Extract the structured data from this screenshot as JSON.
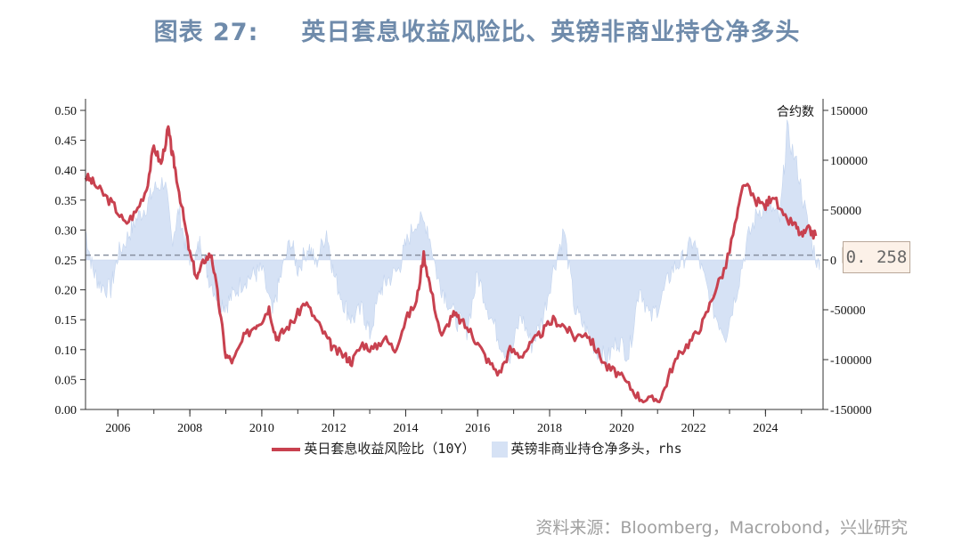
{
  "title": {
    "label": "图表 27:",
    "text": "英日套息收益风险比、英镑非商业持仓净多头"
  },
  "source": "资料来源：Bloomberg，Macrobond，兴业研究",
  "colors": {
    "line": "#c8414f",
    "area": "#d6e2f5",
    "area_stroke": "#c3d4ee",
    "dashed": "#8890a0"
  },
  "chart_data": {
    "type": "line",
    "y_left": {
      "min": 0,
      "max": 0.5,
      "ticks": [
        "0.00",
        "0.05",
        "0.10",
        "0.15",
        "0.20",
        "0.25",
        "0.30",
        "0.35",
        "0.40",
        "0.45",
        "0.50"
      ]
    },
    "y_right": {
      "min": -150000,
      "max": 150000,
      "unit_label": "合约数",
      "ticks": [
        "-150000",
        "-100000",
        "-50000",
        "0",
        "50000",
        "100000",
        "150000"
      ]
    },
    "x_ticks": [
      "2006",
      "2008",
      "2010",
      "2012",
      "2014",
      "2016",
      "2018",
      "2020",
      "2022",
      "2024"
    ],
    "x_range": [
      2005.1,
      2025.6
    ],
    "reference_line": {
      "value": 0.258,
      "label": "0. 258"
    },
    "series": [
      {
        "name": "英日套息收益风险比（10Y）",
        "axis": "left",
        "x": [
          2005.1,
          2005.3,
          2005.6,
          2005.9,
          2006.2,
          2006.5,
          2006.8,
          2007.0,
          2007.2,
          2007.4,
          2007.5,
          2007.6,
          2007.8,
          2008.0,
          2008.2,
          2008.4,
          2008.6,
          2008.8,
          2009.0,
          2009.2,
          2009.5,
          2009.8,
          2010.0,
          2010.2,
          2010.4,
          2010.6,
          2010.9,
          2011.2,
          2011.5,
          2011.8,
          2012.0,
          2012.3,
          2012.5,
          2012.8,
          2013.1,
          2013.4,
          2013.7,
          2014.0,
          2014.3,
          2014.5,
          2014.7,
          2015.0,
          2015.3,
          2015.5,
          2015.8,
          2016.0,
          2016.3,
          2016.6,
          2016.9,
          2017.2,
          2017.5,
          2017.8,
          2018.1,
          2018.4,
          2018.7,
          2019.0,
          2019.3,
          2019.6,
          2019.9,
          2020.2,
          2020.5,
          2020.8,
          2021.1,
          2021.4,
          2021.7,
          2022.0,
          2022.3,
          2022.6,
          2022.9,
          2023.2,
          2023.4,
          2023.7,
          2024.0,
          2024.2,
          2024.5,
          2024.8,
          2025.0,
          2025.2,
          2025.4
        ],
        "y": [
          0.39,
          0.38,
          0.36,
          0.34,
          0.31,
          0.33,
          0.37,
          0.44,
          0.41,
          0.47,
          0.43,
          0.4,
          0.33,
          0.26,
          0.22,
          0.25,
          0.26,
          0.18,
          0.09,
          0.08,
          0.12,
          0.14,
          0.15,
          0.17,
          0.12,
          0.13,
          0.15,
          0.18,
          0.15,
          0.12,
          0.1,
          0.09,
          0.08,
          0.11,
          0.1,
          0.12,
          0.1,
          0.15,
          0.18,
          0.26,
          0.2,
          0.12,
          0.16,
          0.15,
          0.13,
          0.11,
          0.08,
          0.06,
          0.1,
          0.09,
          0.11,
          0.13,
          0.15,
          0.14,
          0.12,
          0.13,
          0.1,
          0.07,
          0.06,
          0.04,
          0.02,
          0.015,
          0.02,
          0.07,
          0.1,
          0.12,
          0.15,
          0.2,
          0.24,
          0.32,
          0.38,
          0.35,
          0.34,
          0.36,
          0.32,
          0.31,
          0.29,
          0.3,
          0.29
        ]
      },
      {
        "name": "英镑非商业持仓净多头，rhs",
        "axis": "right",
        "x": [
          2005.1,
          2005.3,
          2005.5,
          2005.8,
          2006.0,
          2006.3,
          2006.5,
          2006.8,
          2007.0,
          2007.3,
          2007.5,
          2007.7,
          2007.9,
          2008.1,
          2008.3,
          2008.5,
          2008.8,
          2009.0,
          2009.2,
          2009.5,
          2009.8,
          2010.0,
          2010.3,
          2010.5,
          2010.8,
          2011.0,
          2011.3,
          2011.5,
          2011.8,
          2012.0,
          2012.3,
          2012.5,
          2012.8,
          2013.0,
          2013.3,
          2013.5,
          2013.8,
          2014.0,
          2014.3,
          2014.6,
          2014.9,
          2015.1,
          2015.4,
          2015.7,
          2016.0,
          2016.3,
          2016.6,
          2016.9,
          2017.2,
          2017.5,
          2017.8,
          2018.1,
          2018.4,
          2018.7,
          2019.0,
          2019.3,
          2019.6,
          2019.9,
          2020.2,
          2020.5,
          2020.8,
          2021.1,
          2021.4,
          2021.7,
          2022.0,
          2022.3,
          2022.6,
          2022.9,
          2023.2,
          2023.5,
          2023.8,
          2024.1,
          2024.4,
          2024.6,
          2024.9,
          2025.2,
          2025.5
        ],
        "y": [
          30000,
          -10000,
          -25000,
          -30000,
          5000,
          25000,
          40000,
          55000,
          70000,
          80000,
          20000,
          50000,
          10000,
          -5000,
          20000,
          -15000,
          -40000,
          -45000,
          -35000,
          -20000,
          -15000,
          -10000,
          -55000,
          -20000,
          20000,
          -10000,
          15000,
          -5000,
          30000,
          -15000,
          -45000,
          -60000,
          -50000,
          -75000,
          -30000,
          -20000,
          -10000,
          15000,
          40000,
          35000,
          -20000,
          -35000,
          -60000,
          -70000,
          -15000,
          -50000,
          -80000,
          -100000,
          -55000,
          -85000,
          -60000,
          -10000,
          30000,
          -50000,
          -70000,
          -90000,
          -100000,
          -80000,
          -95000,
          -25000,
          -60000,
          -40000,
          -10000,
          0,
          20000,
          -20000,
          -55000,
          -75000,
          -30000,
          20000,
          50000,
          55000,
          40000,
          130000,
          90000,
          30000,
          -10000
        ]
      }
    ],
    "grid": false,
    "legend_position": "bottom"
  }
}
